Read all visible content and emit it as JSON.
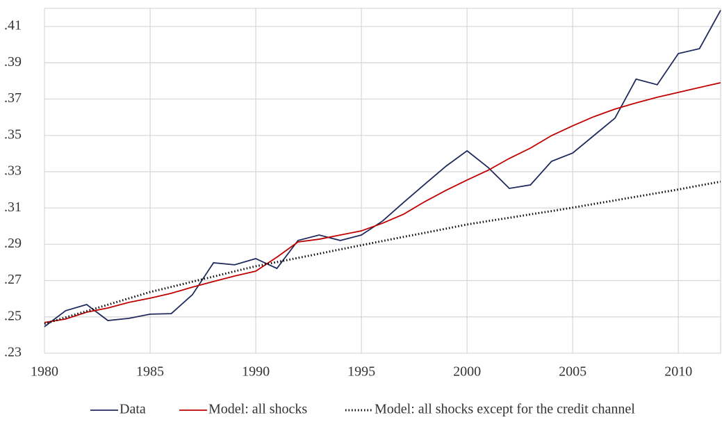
{
  "chart_data": {
    "type": "line",
    "x": [
      1980,
      1981,
      1982,
      1983,
      1984,
      1985,
      1986,
      1987,
      1988,
      1989,
      1990,
      1991,
      1992,
      1993,
      1994,
      1995,
      1996,
      1997,
      1998,
      1999,
      2000,
      2001,
      2002,
      2003,
      2004,
      2005,
      2006,
      2007,
      2008,
      2009,
      2010,
      2011,
      2012
    ],
    "series": [
      {
        "name": "Data",
        "color": "#1f2a5c",
        "dash": "solid",
        "values": [
          0.2446,
          0.2534,
          0.2568,
          0.248,
          0.2492,
          0.2515,
          0.2518,
          0.2622,
          0.2798,
          0.2787,
          0.2821,
          0.2767,
          0.2921,
          0.2951,
          0.2921,
          0.2951,
          0.3028,
          0.3131,
          0.3231,
          0.333,
          0.3415,
          0.3323,
          0.3208,
          0.3227,
          0.3357,
          0.3403,
          0.3499,
          0.3595,
          0.381,
          0.3779,
          0.3951,
          0.3978,
          0.4189
        ]
      },
      {
        "name": "Model: all shocks",
        "color": "#c00000",
        "dash": "solid",
        "values": [
          0.2469,
          0.2488,
          0.2526,
          0.2549,
          0.258,
          0.2603,
          0.263,
          0.2664,
          0.2695,
          0.2725,
          0.2752,
          0.2829,
          0.2913,
          0.2928,
          0.2951,
          0.2974,
          0.3016,
          0.3066,
          0.3135,
          0.3197,
          0.3254,
          0.3308,
          0.3373,
          0.343,
          0.3499,
          0.3553,
          0.3603,
          0.3645,
          0.3679,
          0.371,
          0.3737,
          0.3764,
          0.379
        ]
      },
      {
        "name": "Model: all shocks except for the credit channel",
        "color": "#000000",
        "dash": "dotted",
        "values": [
          0.2462,
          0.2497,
          0.2532,
          0.2567,
          0.2602,
          0.2637,
          0.2665,
          0.2694,
          0.2722,
          0.2751,
          0.2779,
          0.2802,
          0.2825,
          0.2848,
          0.2872,
          0.2895,
          0.2918,
          0.2941,
          0.2963,
          0.2986,
          0.3009,
          0.3028,
          0.3046,
          0.3065,
          0.3083,
          0.3102,
          0.3122,
          0.3142,
          0.3162,
          0.3182,
          0.3202,
          0.3224,
          0.3245
        ]
      }
    ],
    "xlim": [
      1980,
      2012
    ],
    "xticks": [
      1980,
      1985,
      1990,
      1995,
      2000,
      2005,
      2010
    ],
    "ylim": [
      0.23,
      0.42
    ],
    "yticks": [
      {
        "value": 0.23,
        "label": ".23"
      },
      {
        "value": 0.25,
        "label": ".25"
      },
      {
        "value": 0.27,
        "label": ".27"
      },
      {
        "value": 0.29,
        "label": ".29"
      },
      {
        "value": 0.31,
        "label": ".31"
      },
      {
        "value": 0.33,
        "label": ".33"
      },
      {
        "value": 0.35,
        "label": ".35"
      },
      {
        "value": 0.37,
        "label": ".37"
      },
      {
        "value": 0.39,
        "label": ".39"
      },
      {
        "value": 0.41,
        "label": ".41"
      }
    ],
    "grid": true,
    "legend": "bottom"
  }
}
